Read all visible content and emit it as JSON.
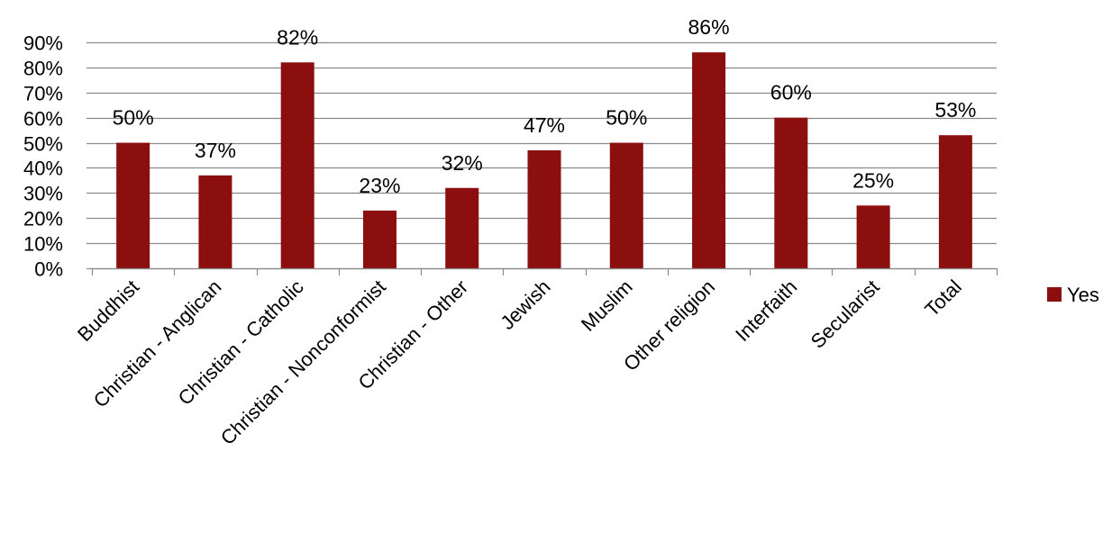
{
  "chart_data": {
    "type": "bar",
    "title": "",
    "xlabel": "",
    "ylabel": "",
    "categories": [
      "Buddhist",
      "Christian - Anglican",
      "Christian - Catholic",
      "Christian - Nonconformist",
      "Christian - Other",
      "Jewish",
      "Muslim",
      "Other religion",
      "Interfaith",
      "Secularist",
      "Total"
    ],
    "series": [
      {
        "name": "Yes",
        "color": "#8B0F0E",
        "values": [
          50,
          37,
          82,
          23,
          32,
          47,
          50,
          86,
          60,
          25,
          53
        ],
        "labels": [
          "50%",
          "37%",
          "82%",
          "23%",
          "32%",
          "47%",
          "50%",
          "86%",
          "60%",
          "25%",
          "53%"
        ]
      }
    ],
    "ylim": [
      0,
      90
    ],
    "yticks": [
      0,
      10,
      20,
      30,
      40,
      50,
      60,
      70,
      80,
      90
    ],
    "ytick_labels": [
      "0%",
      "10%",
      "20%",
      "30%",
      "40%",
      "50%",
      "60%",
      "70%",
      "80%",
      "90%"
    ],
    "grid": true,
    "legend_position": "right"
  }
}
